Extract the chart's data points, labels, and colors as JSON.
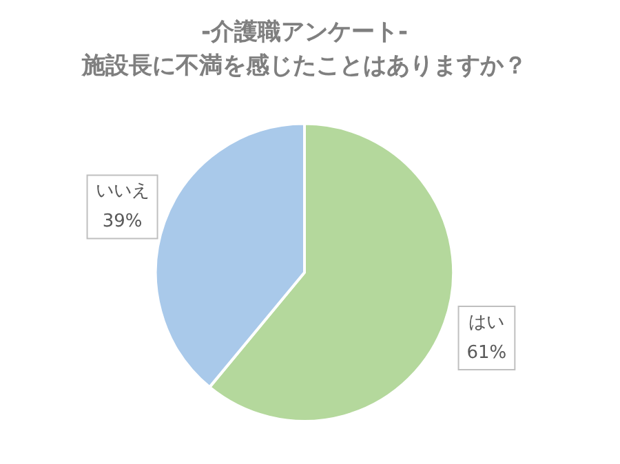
{
  "chart_data": {
    "type": "pie",
    "title": "-介護職アンケート-",
    "subtitle": "施設長に不満を感じたことはありますか？",
    "categories": [
      "はい",
      "いいえ"
    ],
    "values": [
      61,
      39
    ],
    "colors": [
      "#b4d89c",
      "#a9c9ea"
    ],
    "value_labels": [
      "61%",
      "39%"
    ],
    "legend": false
  }
}
